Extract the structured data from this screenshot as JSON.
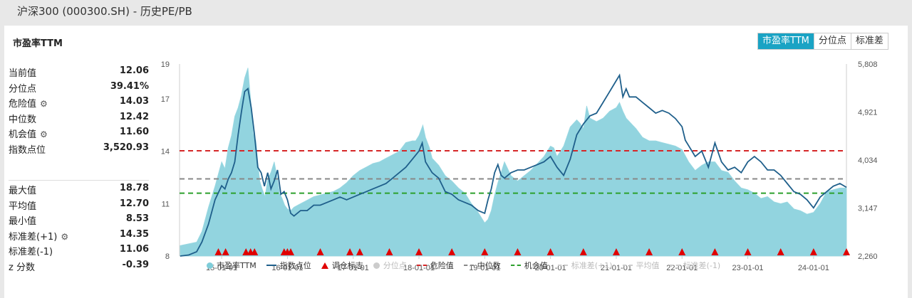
{
  "page_title": "沪深300 (000300.SH) - 历史PE/PB",
  "card_title": "市盈率TTM",
  "tabs": [
    {
      "label": "市盈率TTM",
      "active": true
    },
    {
      "label": "分位点",
      "active": false
    },
    {
      "label": "标准差",
      "active": false
    }
  ],
  "stats_top": [
    {
      "label": "当前值",
      "value": "12.06",
      "gear": false
    },
    {
      "label": "分位点",
      "value": "39.41%",
      "gear": false
    },
    {
      "label": "危险值",
      "value": "14.03",
      "gear": true
    },
    {
      "label": "中位数",
      "value": "12.42",
      "gear": false
    },
    {
      "label": "机会值",
      "value": "11.60",
      "gear": true
    },
    {
      "label": "指数点位",
      "value": "3,520.93",
      "gear": false
    }
  ],
  "stats_bottom": [
    {
      "label": "最大值",
      "value": "18.78",
      "gear": false
    },
    {
      "label": "平均值",
      "value": "12.70",
      "gear": false
    },
    {
      "label": "最小值",
      "value": "8.53",
      "gear": false
    },
    {
      "label": "标准差(+1)",
      "value": "14.35",
      "gear": true
    },
    {
      "label": "标准差(-1)",
      "value": "11.06",
      "gear": false
    },
    {
      "label": "z 分数",
      "value": "-0.39",
      "gear": false
    }
  ],
  "icons": {
    "gear": "gear-icon"
  },
  "legend": [
    {
      "label": "市盈率TTM",
      "symbol": "dot",
      "color": "#7fcdd9",
      "active": true
    },
    {
      "label": "指数点位",
      "symbol": "line",
      "color": "#1f5f8b",
      "active": true
    },
    {
      "label": "调仓标志",
      "symbol": "tri",
      "color": "#e00000",
      "active": true
    },
    {
      "label": "分位点",
      "symbol": "dot",
      "color": "#cccccc",
      "active": false
    },
    {
      "label": "危险值",
      "symbol": "dash",
      "color": "#d62728",
      "active": true
    },
    {
      "label": "中位数",
      "symbol": "dash",
      "color": "#888888",
      "active": true
    },
    {
      "label": "机会值",
      "symbol": "dash",
      "color": "#2ca02c",
      "active": true
    },
    {
      "label": "标准差(+1)",
      "symbol": "dash",
      "color": "#cccccc",
      "active": false
    },
    {
      "label": "平均值",
      "symbol": "dash",
      "color": "#cccccc",
      "active": false
    },
    {
      "label": "标准差(-1)",
      "symbol": "dash",
      "color": "#cccccc",
      "active": false
    }
  ],
  "colors": {
    "accent": "#1aa3c4",
    "area": "#7fcdd9",
    "index_line": "#1f5f8b",
    "danger": "#d62728",
    "median": "#888888",
    "opportunity": "#2ca02c",
    "marker": "#e00000"
  },
  "chart_data": {
    "type": "area",
    "xlim": [
      2014.36,
      2024.5
    ],
    "x_ticks": [
      {
        "label": "15-01-01",
        "x": 2015.0
      },
      {
        "label": "16-01-01",
        "x": 2016.0
      },
      {
        "label": "17-01-01",
        "x": 2017.0
      },
      {
        "label": "18-01-01",
        "x": 2018.0
      },
      {
        "label": "19-01-01",
        "x": 2019.0
      },
      {
        "label": "20-01-01",
        "x": 2020.0
      },
      {
        "label": "21-01-01",
        "x": 2021.0
      },
      {
        "label": "22-01-01",
        "x": 2022.0
      },
      {
        "label": "23-01-01",
        "x": 2023.0
      },
      {
        "label": "24-01-01",
        "x": 2024.0
      }
    ],
    "y_left": {
      "ticks": [
        8,
        11,
        14,
        17,
        19
      ],
      "range": [
        8,
        19
      ]
    },
    "y_right": {
      "tick_labels": [
        "2,260",
        "3,147",
        "4,034",
        "4,921",
        "5,808"
      ],
      "range": [
        2260,
        5808
      ]
    },
    "reference_lines": [
      {
        "name": "危险值",
        "value": 14.03,
        "color": "#d62728"
      },
      {
        "name": "中位数",
        "value": 12.42,
        "color": "#888888"
      },
      {
        "name": "机会值",
        "value": 11.6,
        "color": "#2ca02c"
      }
    ],
    "series": [
      {
        "name": "市盈率TTM",
        "axis": "left",
        "type": "area",
        "x": [
          2014.37,
          2014.5,
          2014.62,
          2014.7,
          2014.8,
          2014.9,
          2015.0,
          2015.05,
          2015.1,
          2015.15,
          2015.2,
          2015.25,
          2015.3,
          2015.35,
          2015.4,
          2015.42,
          2015.45,
          2015.48,
          2015.52,
          2015.55,
          2015.58,
          2015.62,
          2015.66,
          2015.7,
          2015.75,
          2015.8,
          2015.85,
          2015.88,
          2015.92,
          2015.96,
          2016.0,
          2016.05,
          2016.1,
          2016.2,
          2016.3,
          2016.4,
          2016.5,
          2016.6,
          2016.7,
          2016.8,
          2016.9,
          2017.0,
          2017.1,
          2017.2,
          2017.3,
          2017.4,
          2017.5,
          2017.6,
          2017.7,
          2017.8,
          2017.9,
          2017.95,
          2018.0,
          2018.03,
          2018.06,
          2018.1,
          2018.13,
          2018.16,
          2018.2,
          2018.3,
          2018.4,
          2018.5,
          2018.6,
          2018.7,
          2018.8,
          2018.9,
          2019.0,
          2019.05,
          2019.1,
          2019.15,
          2019.2,
          2019.25,
          2019.3,
          2019.4,
          2019.5,
          2019.6,
          2019.7,
          2019.8,
          2019.9,
          2020.0,
          2020.05,
          2020.1,
          2020.2,
          2020.3,
          2020.4,
          2020.45,
          2020.5,
          2020.55,
          2020.6,
          2020.7,
          2020.8,
          2020.9,
          2021.0,
          2021.05,
          2021.1,
          2021.15,
          2021.2,
          2021.3,
          2021.4,
          2021.5,
          2021.6,
          2021.7,
          2021.8,
          2021.9,
          2022.0,
          2022.1,
          2022.2,
          2022.3,
          2022.4,
          2022.5,
          2022.6,
          2022.7,
          2022.8,
          2022.9,
          2023.0,
          2023.1,
          2023.2,
          2023.3,
          2023.4,
          2023.5,
          2023.6,
          2023.7,
          2023.8,
          2023.9,
          2024.0,
          2024.1,
          2024.2,
          2024.3,
          2024.4,
          2024.5
        ],
        "y": [
          8.6,
          8.7,
          8.8,
          9.4,
          10.8,
          12.0,
          13.4,
          13.0,
          14.2,
          14.9,
          16.0,
          16.5,
          17.2,
          18.2,
          18.78,
          17.9,
          16.6,
          15.0,
          14.6,
          13.4,
          12.3,
          11.8,
          11.4,
          12.4,
          12.8,
          13.4,
          12.4,
          11.6,
          11.3,
          10.9,
          10.7,
          10.6,
          10.8,
          11.0,
          11.2,
          11.4,
          11.5,
          11.6,
          11.7,
          11.9,
          12.2,
          12.6,
          12.9,
          13.1,
          13.3,
          13.4,
          13.6,
          13.8,
          14.0,
          14.5,
          14.6,
          14.6,
          14.9,
          15.2,
          15.5,
          14.8,
          14.5,
          14.2,
          13.6,
          13.2,
          12.6,
          12.3,
          11.9,
          11.6,
          11.0,
          10.5,
          9.9,
          10.1,
          10.6,
          11.5,
          12.2,
          12.8,
          13.4,
          12.6,
          12.3,
          12.6,
          12.9,
          13.3,
          13.7,
          14.3,
          14.2,
          13.7,
          14.3,
          15.4,
          15.8,
          15.6,
          15.3,
          16.6,
          15.9,
          15.7,
          15.9,
          16.3,
          16.5,
          16.8,
          16.3,
          15.9,
          15.7,
          15.3,
          14.8,
          14.6,
          14.6,
          14.5,
          14.4,
          14.3,
          14.1,
          13.4,
          12.9,
          13.2,
          13.4,
          13.4,
          12.9,
          12.8,
          12.3,
          11.9,
          11.8,
          11.6,
          11.3,
          11.4,
          11.1,
          11.0,
          11.1,
          10.7,
          10.6,
          10.4,
          10.5,
          11.0,
          11.7,
          11.8,
          11.9,
          11.9
        ]
      },
      {
        "name": "指数点位",
        "axis": "right",
        "type": "line",
        "x": [
          2014.37,
          2014.5,
          2014.62,
          2014.7,
          2014.8,
          2014.9,
          2015.0,
          2015.05,
          2015.1,
          2015.15,
          2015.2,
          2015.25,
          2015.3,
          2015.35,
          2015.4,
          2015.45,
          2015.5,
          2015.55,
          2015.6,
          2015.65,
          2015.7,
          2015.75,
          2015.8,
          2015.85,
          2015.9,
          2015.95,
          2016.0,
          2016.05,
          2016.1,
          2016.2,
          2016.3,
          2016.4,
          2016.5,
          2016.6,
          2016.7,
          2016.8,
          2016.9,
          2017.0,
          2017.1,
          2017.2,
          2017.3,
          2017.4,
          2017.5,
          2017.6,
          2017.7,
          2017.8,
          2017.9,
          2018.0,
          2018.05,
          2018.1,
          2018.15,
          2018.2,
          2018.3,
          2018.4,
          2018.5,
          2018.6,
          2018.7,
          2018.8,
          2018.9,
          2019.0,
          2019.05,
          2019.1,
          2019.15,
          2019.2,
          2019.25,
          2019.3,
          2019.4,
          2019.5,
          2019.6,
          2019.7,
          2019.8,
          2019.9,
          2020.0,
          2020.1,
          2020.2,
          2020.3,
          2020.4,
          2020.5,
          2020.6,
          2020.7,
          2020.8,
          2020.9,
          2021.0,
          2021.05,
          2021.1,
          2021.15,
          2021.2,
          2021.3,
          2021.4,
          2021.5,
          2021.6,
          2021.7,
          2021.8,
          2021.9,
          2022.0,
          2022.05,
          2022.1,
          2022.15,
          2022.2,
          2022.3,
          2022.4,
          2022.5,
          2022.6,
          2022.7,
          2022.8,
          2022.9,
          2023.0,
          2023.1,
          2023.2,
          2023.3,
          2023.4,
          2023.5,
          2023.6,
          2023.7,
          2023.8,
          2023.9,
          2024.0,
          2024.1,
          2024.2,
          2024.3,
          2024.4,
          2024.5
        ],
        "y": [
          2260,
          2280,
          2340,
          2520,
          2850,
          3300,
          3560,
          3500,
          3680,
          3800,
          4000,
          4500,
          4920,
          5300,
          5353,
          5000,
          4500,
          3900,
          3800,
          3550,
          3800,
          3500,
          3650,
          3850,
          3400,
          3450,
          3300,
          3050,
          3000,
          3100,
          3100,
          3200,
          3200,
          3250,
          3300,
          3350,
          3300,
          3350,
          3400,
          3450,
          3500,
          3550,
          3600,
          3700,
          3800,
          3900,
          4050,
          4200,
          4350,
          4000,
          3900,
          3800,
          3700,
          3450,
          3400,
          3300,
          3250,
          3200,
          3100,
          3050,
          3300,
          3500,
          3800,
          3950,
          3750,
          3700,
          3800,
          3850,
          3850,
          3900,
          3950,
          4000,
          4100,
          3900,
          3750,
          4050,
          4500,
          4700,
          4850,
          4900,
          5100,
          5300,
          5500,
          5600,
          5200,
          5350,
          5200,
          5200,
          5100,
          5000,
          4900,
          4950,
          4900,
          4800,
          4650,
          4400,
          4300,
          4200,
          4100,
          4200,
          3900,
          4350,
          4000,
          3850,
          3900,
          3800,
          4000,
          4100,
          4000,
          3850,
          3850,
          3750,
          3600,
          3450,
          3400,
          3300,
          3150,
          3350,
          3450,
          3550,
          3600,
          3530
        ]
      }
    ],
    "rebalance_markers_x": [
      2014.95,
      2015.06,
      2015.37,
      2015.44,
      2015.5,
      2015.95,
      2016.0,
      2016.05,
      2016.5,
      2016.95,
      2017.1,
      2017.55,
      2018.0,
      2018.5,
      2019.0,
      2019.5,
      2020.0,
      2020.5,
      2021.0,
      2021.5,
      2022.0,
      2022.5,
      2023.0,
      2023.5,
      2024.0,
      2024.5
    ]
  }
}
